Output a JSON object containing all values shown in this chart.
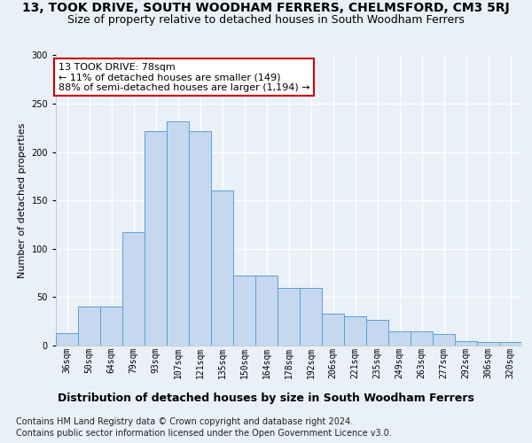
{
  "title": "13, TOOK DRIVE, SOUTH WOODHAM FERRERS, CHELMSFORD, CM3 5RJ",
  "subtitle": "Size of property relative to detached houses in South Woodham Ferrers",
  "xlabel": "Distribution of detached houses by size in South Woodham Ferrers",
  "ylabel": "Number of detached properties",
  "categories": [
    "36sqm",
    "50sqm",
    "64sqm",
    "79sqm",
    "93sqm",
    "107sqm",
    "121sqm",
    "135sqm",
    "150sqm",
    "164sqm",
    "178sqm",
    "192sqm",
    "206sqm",
    "221sqm",
    "235sqm",
    "249sqm",
    "263sqm",
    "277sqm",
    "292sqm",
    "306sqm",
    "320sqm"
  ],
  "values": [
    13,
    40,
    40,
    117,
    222,
    232,
    222,
    160,
    72,
    72,
    60,
    60,
    33,
    30,
    27,
    15,
    15,
    12,
    5,
    4,
    4
  ],
  "bar_color": "#c5d8f0",
  "bar_edge_color": "#5a9fd4",
  "annotation_text": "13 TOOK DRIVE: 78sqm\n← 11% of detached houses are smaller (149)\n88% of semi-detached houses are larger (1,194) →",
  "annotation_box_color": "#ffffff",
  "annotation_box_edge": "#cc0000",
  "footer_line1": "Contains HM Land Registry data © Crown copyright and database right 2024.",
  "footer_line2": "Contains public sector information licensed under the Open Government Licence v3.0.",
  "ylim": [
    0,
    300
  ],
  "bg_color": "#eaf0f8",
  "plot_bg_color": "#eaf0f8",
  "grid_color": "#ffffff",
  "title_fontsize": 10,
  "subtitle_fontsize": 9,
  "xlabel_fontsize": 9,
  "ylabel_fontsize": 8,
  "tick_fontsize": 7,
  "footer_fontsize": 7
}
